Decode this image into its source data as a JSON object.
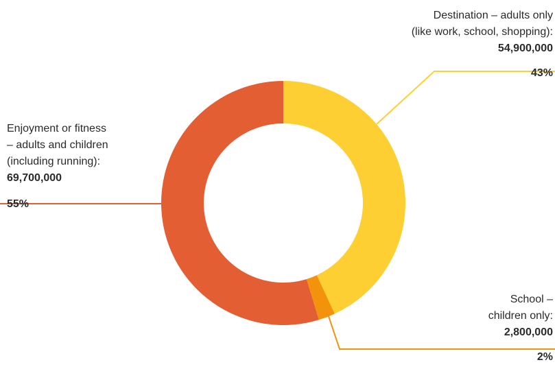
{
  "chart_data": {
    "type": "pie",
    "variant": "donut",
    "categories": [
      "Destination – adults only (like work, school, shopping)",
      "School – children only",
      "Enjoyment or fitness – adults and children (including running)"
    ],
    "values": [
      54900000,
      2800000,
      69700000
    ],
    "percents": [
      "43%",
      "2%",
      "55%"
    ],
    "value_labels": [
      "54,900,000",
      "2,800,000",
      "69,700,000"
    ],
    "colors": [
      "#fecf33",
      "#f3920b",
      "#e35f33"
    ],
    "legend": "none",
    "labels": {
      "destination": {
        "lines": [
          "Destination – adults only",
          "(like work, school, shopping):"
        ],
        "value": "54,900,000",
        "pct": "43%"
      },
      "school": {
        "lines": [
          "School –",
          "children only:"
        ],
        "value": "2,800,000",
        "pct": "2%"
      },
      "enjoyment": {
        "lines": [
          "Enjoyment or fitness",
          "– adults and children",
          "(including running):"
        ],
        "value": "69,700,000",
        "pct": "55%"
      }
    }
  }
}
